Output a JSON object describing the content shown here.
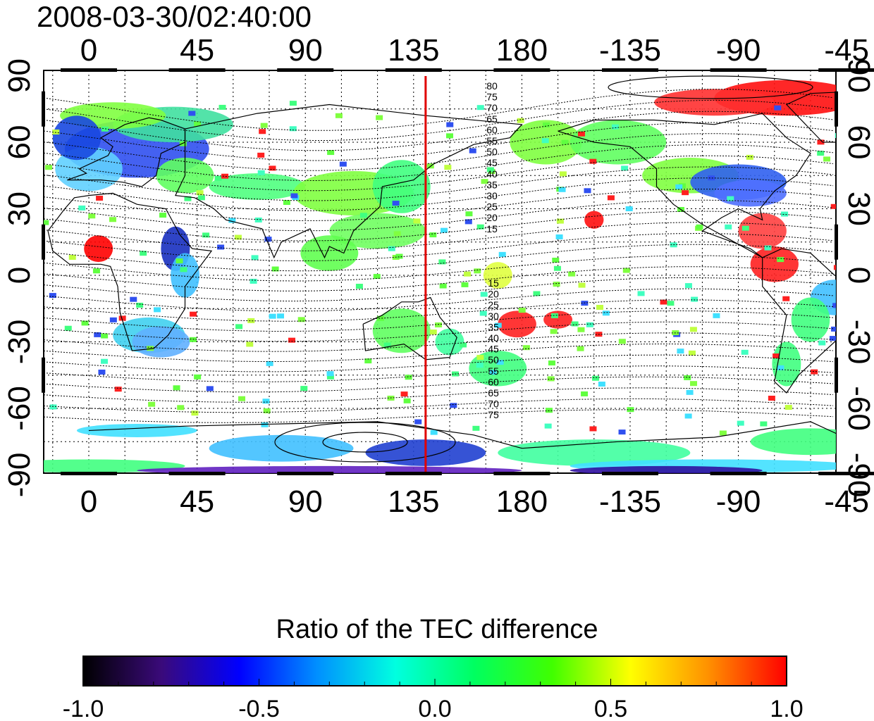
{
  "title": "2008-03-30/02:40:00",
  "map": {
    "x_ticks_top": [
      "0",
      "45",
      "90",
      "135",
      "180",
      "-135",
      "-90",
      "-45"
    ],
    "x_ticks_bottom": [
      "0",
      "45",
      "90",
      "135",
      "180",
      "-135",
      "-90",
      "-45"
    ],
    "y_ticks_left": [
      "90",
      "60",
      "30",
      "0",
      "-30",
      "-60",
      "-90"
    ],
    "y_ticks_right": [
      "90",
      "60",
      "30",
      "0",
      "-30",
      "-60",
      "-90"
    ],
    "marker_longitude": 140,
    "marker_color": "#e00000",
    "contour_labels_north": [
      "80",
      "75",
      "70",
      "65",
      "60",
      "55",
      "50",
      "45",
      "40",
      "35",
      "30",
      "25",
      "20",
      "15"
    ],
    "contour_labels_south": [
      "15",
      "20",
      "25",
      "30",
      "35",
      "40",
      "45",
      "50",
      "55",
      "60",
      "65",
      "70",
      "75"
    ]
  },
  "colorbar": {
    "title": "Ratio of the TEC difference",
    "tick_labels": [
      "-1.0",
      "-0.5",
      "0.0",
      "0.5",
      "1.0"
    ],
    "min": -1.0,
    "max": 1.0,
    "colors": [
      "#000000",
      "#3a0a7a",
      "#0000ff",
      "#0090ff",
      "#00ffe0",
      "#00ff60",
      "#40ff00",
      "#ffff00",
      "#ff9000",
      "#ff0000"
    ]
  }
}
